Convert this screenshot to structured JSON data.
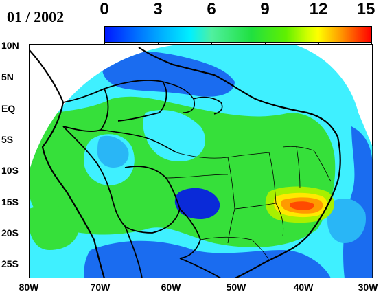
{
  "title": {
    "date_label": "01 / 2002"
  },
  "colorbar": {
    "labels": [
      "0",
      "3",
      "6",
      "9",
      "12",
      "15"
    ],
    "min": 0,
    "max": 15
  },
  "axes": {
    "lat_labels": [
      "10N",
      "5N",
      "EQ",
      "5S",
      "10S",
      "15S",
      "20S",
      "25S"
    ],
    "lon_labels": [
      "80W",
      "70W",
      "60W",
      "50W",
      "40W",
      "30W"
    ]
  },
  "colors": {
    "deep_blue": "#0a2ad8",
    "blue": "#1a6cf0",
    "light_blue": "#29b6f6",
    "cyan": "#3ff0ff",
    "sea_green": "#40e8a0",
    "green": "#36e03a",
    "yellow_green": "#a8f000",
    "yellow": "#ffe800",
    "orange": "#ff9a00",
    "red": "#ff4a00"
  }
}
